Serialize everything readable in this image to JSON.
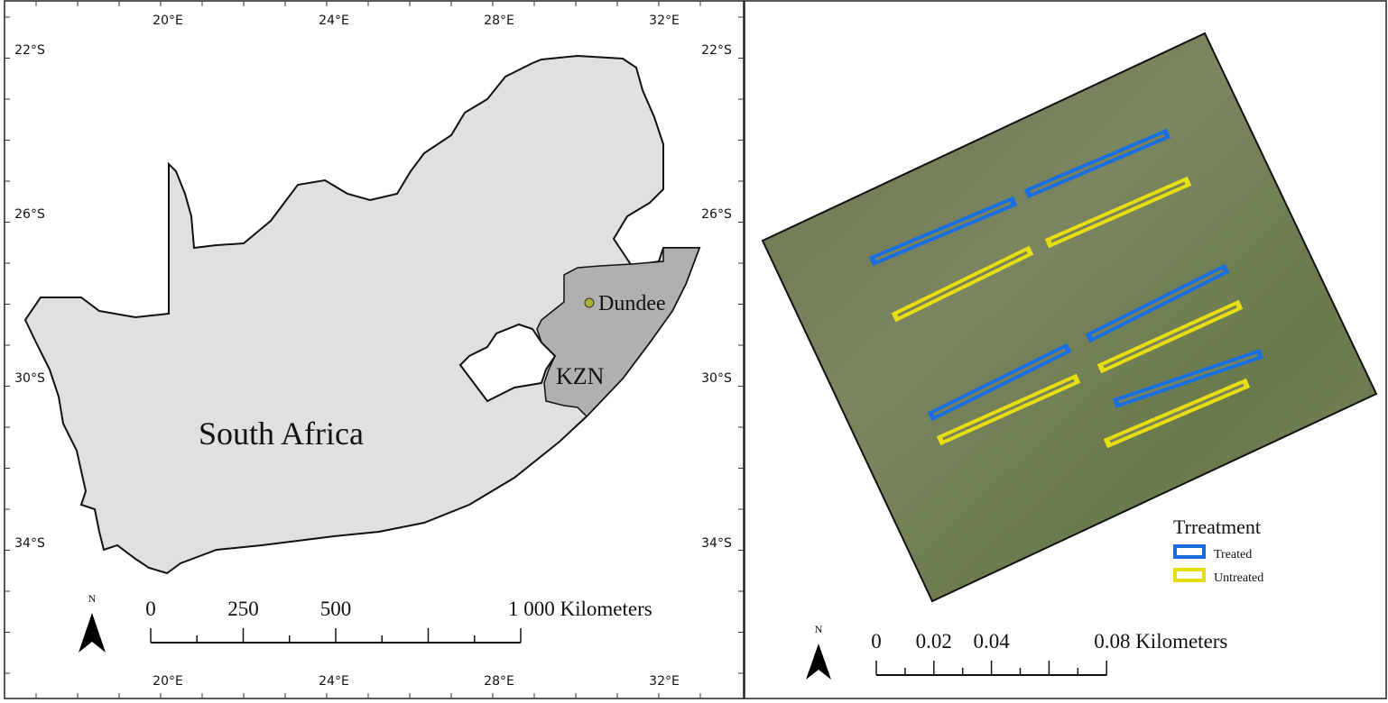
{
  "left_map": {
    "lon_labels": [
      "20°E",
      "24°E",
      "28°E",
      "32°E"
    ],
    "lat_labels": [
      "22°S",
      "26°S",
      "30°S",
      "34°S"
    ],
    "country_label": "South Africa",
    "province_label": "KZN",
    "town_label": "Dundee",
    "north": "N",
    "scale_labels": [
      "0",
      "250",
      "500",
      "1 000 Kilometers"
    ]
  },
  "right_map": {
    "legend": {
      "title": "Trreatment",
      "items": [
        "Treated",
        "Untreated"
      ]
    },
    "north": "N",
    "scale_labels": [
      "0",
      "0.02",
      "0.04",
      "0.08 Kilometers"
    ]
  }
}
